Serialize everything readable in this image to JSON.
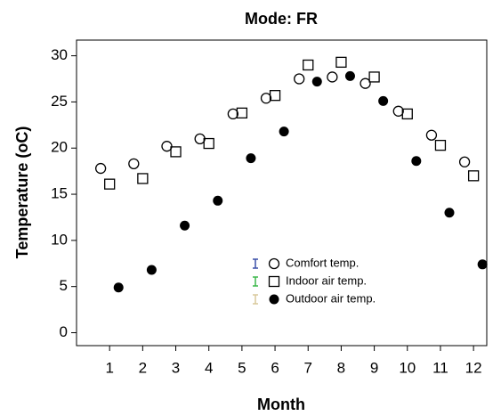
{
  "chart_data": {
    "type": "scatter",
    "title": "Mode: FR",
    "x_label": "Month",
    "y_label": "Temperature (oC)",
    "x": [
      1,
      2,
      3,
      4,
      5,
      6,
      7,
      8,
      9,
      10,
      11,
      12
    ],
    "xlim": [
      0,
      12.4
    ],
    "xticks": [
      1,
      2,
      3,
      4,
      5,
      6,
      7,
      8,
      9,
      10,
      11,
      12
    ],
    "ylim": [
      -1.4,
      31.7
    ],
    "yticks": [
      0,
      5,
      10,
      15,
      20,
      25,
      30
    ],
    "series": [
      {
        "name": "Comfort temp.",
        "color": "#3a4fa8",
        "marker": "circle-open",
        "values": [
          17.8,
          18.3,
          20.2,
          21.0,
          23.7,
          25.4,
          27.5,
          27.7,
          27.0,
          24.0,
          21.4,
          18.5
        ]
      },
      {
        "name": "Indoor air temp.",
        "color": "#3cb84a",
        "marker": "square-open",
        "values": [
          16.1,
          16.7,
          19.6,
          20.5,
          23.8,
          25.7,
          29.0,
          29.3,
          27.7,
          23.7,
          20.3,
          17.0
        ]
      },
      {
        "name": "Outdoor air temp.",
        "color": "#d9c89a",
        "marker": "circle",
        "values": [
          4.9,
          6.8,
          11.6,
          14.3,
          18.9,
          21.8,
          27.2,
          27.8,
          25.1,
          18.6,
          13.0,
          7.4
        ]
      }
    ]
  }
}
